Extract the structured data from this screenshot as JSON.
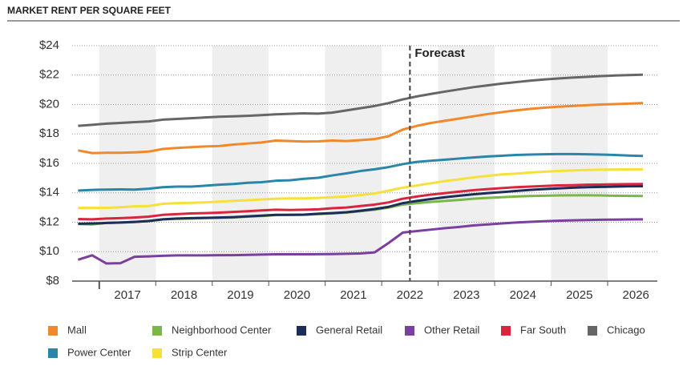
{
  "chart_data": {
    "type": "line",
    "title": "MARKET RENT PER SQUARE FEET",
    "annotation": {
      "text": "Forecast",
      "x": 2022.5
    },
    "xlim": [
      2016.52,
      2026.88
    ],
    "xticks": [
      {
        "value": 2017.5,
        "label": "2017"
      },
      {
        "value": 2018.5,
        "label": "2018"
      },
      {
        "value": 2019.5,
        "label": "2019"
      },
      {
        "value": 2020.5,
        "label": "2020"
      },
      {
        "value": 2021.5,
        "label": "2021"
      },
      {
        "value": 2022.5,
        "label": "2022"
      },
      {
        "value": 2023.5,
        "label": "2023"
      },
      {
        "value": 2024.5,
        "label": "2024"
      },
      {
        "value": 2025.5,
        "label": "2025"
      },
      {
        "value": 2026.5,
        "label": "2026"
      }
    ],
    "ylim": [
      8,
      24
    ],
    "yticks": [
      {
        "value": 8,
        "label": "$8"
      },
      {
        "value": 10,
        "label": "$10"
      },
      {
        "value": 12,
        "label": "$12"
      },
      {
        "value": 14,
        "label": "$14"
      },
      {
        "value": 16,
        "label": "$16"
      },
      {
        "value": 18,
        "label": "$18"
      },
      {
        "value": 20,
        "label": "$20"
      },
      {
        "value": 22,
        "label": "$22"
      },
      {
        "value": 24,
        "label": "$24"
      }
    ],
    "grid": true,
    "x": [
      2016.625,
      2016.875,
      2017.125,
      2017.375,
      2017.625,
      2017.875,
      2018.125,
      2018.375,
      2018.625,
      2018.875,
      2019.125,
      2019.375,
      2019.625,
      2019.875,
      2020.125,
      2020.375,
      2020.625,
      2020.875,
      2021.125,
      2021.375,
      2021.625,
      2021.875,
      2022.125,
      2022.375,
      2022.625,
      2022.875,
      2023.125,
      2023.375,
      2023.625,
      2023.875,
      2024.125,
      2024.375,
      2024.625,
      2024.875,
      2025.125,
      2025.375,
      2025.625,
      2025.875,
      2026.125,
      2026.375,
      2026.625
    ],
    "series": [
      {
        "name": "Mall",
        "color": "#f0892b",
        "values": [
          16.88,
          16.7,
          16.72,
          16.72,
          16.75,
          16.8,
          16.98,
          17.05,
          17.1,
          17.15,
          17.18,
          17.28,
          17.35,
          17.42,
          17.55,
          17.52,
          17.48,
          17.5,
          17.55,
          17.52,
          17.58,
          17.65,
          17.85,
          18.3,
          18.55,
          18.75,
          18.9,
          19.05,
          19.2,
          19.35,
          19.48,
          19.6,
          19.7,
          19.78,
          19.85,
          19.9,
          19.95,
          20.0,
          20.03,
          20.06,
          20.1
        ]
      },
      {
        "name": "Neighborhood Center",
        "color": "#7ab648",
        "values": [
          11.88,
          11.85,
          11.95,
          11.98,
          12.02,
          12.08,
          12.2,
          12.23,
          12.25,
          12.28,
          12.3,
          12.32,
          12.38,
          12.42,
          12.48,
          12.5,
          12.5,
          12.55,
          12.6,
          12.65,
          12.75,
          12.85,
          13.0,
          13.2,
          13.3,
          13.38,
          13.45,
          13.52,
          13.6,
          13.65,
          13.7,
          13.75,
          13.78,
          13.8,
          13.82,
          13.83,
          13.83,
          13.82,
          13.8,
          13.79,
          13.78
        ]
      },
      {
        "name": "General Retail",
        "color": "#1c2d5a",
        "values": [
          11.9,
          11.92,
          11.95,
          11.98,
          12.02,
          12.08,
          12.2,
          12.25,
          12.28,
          12.3,
          12.32,
          12.35,
          12.4,
          12.45,
          12.5,
          12.5,
          12.52,
          12.58,
          12.62,
          12.68,
          12.78,
          12.9,
          13.05,
          13.3,
          13.45,
          13.58,
          13.7,
          13.8,
          13.9,
          13.98,
          14.05,
          14.12,
          14.2,
          14.25,
          14.3,
          14.35,
          14.38,
          14.4,
          14.42,
          14.44,
          14.45
        ]
      },
      {
        "name": "Other Retail",
        "color": "#7b3f9e",
        "values": [
          9.45,
          9.75,
          9.2,
          9.22,
          9.65,
          9.68,
          9.72,
          9.75,
          9.75,
          9.75,
          9.76,
          9.76,
          9.78,
          9.8,
          9.82,
          9.82,
          9.82,
          9.83,
          9.84,
          9.86,
          9.88,
          9.95,
          10.6,
          11.3,
          11.4,
          11.5,
          11.6,
          11.68,
          11.78,
          11.85,
          11.92,
          11.98,
          12.03,
          12.07,
          12.1,
          12.13,
          12.15,
          12.17,
          12.18,
          12.19,
          12.2
        ]
      },
      {
        "name": "Far South",
        "color": "#d7263d",
        "values": [
          12.22,
          12.2,
          12.25,
          12.28,
          12.32,
          12.38,
          12.5,
          12.55,
          12.6,
          12.62,
          12.65,
          12.7,
          12.75,
          12.8,
          12.85,
          12.83,
          12.85,
          12.88,
          12.95,
          13.0,
          13.1,
          13.2,
          13.35,
          13.6,
          13.75,
          13.88,
          13.98,
          14.08,
          14.18,
          14.25,
          14.32,
          14.38,
          14.42,
          14.46,
          14.5,
          14.52,
          14.55,
          14.56,
          14.58,
          14.59,
          14.6
        ]
      },
      {
        "name": "Chicago",
        "color": "#666666",
        "values": [
          18.55,
          18.62,
          18.7,
          18.75,
          18.8,
          18.85,
          18.97,
          19.02,
          19.07,
          19.12,
          19.17,
          19.2,
          19.23,
          19.28,
          19.33,
          19.37,
          19.4,
          19.38,
          19.45,
          19.6,
          19.75,
          19.9,
          20.1,
          20.35,
          20.55,
          20.72,
          20.88,
          21.03,
          21.18,
          21.3,
          21.42,
          21.52,
          21.62,
          21.7,
          21.77,
          21.83,
          21.88,
          21.93,
          21.97,
          22.0,
          22.03
        ]
      },
      {
        "name": "Power Center",
        "color": "#2a86a8",
        "values": [
          14.15,
          14.2,
          14.22,
          14.23,
          14.22,
          14.28,
          14.38,
          14.42,
          14.42,
          14.48,
          14.55,
          14.6,
          14.68,
          14.72,
          14.82,
          14.85,
          14.95,
          15.02,
          15.18,
          15.32,
          15.48,
          15.6,
          15.75,
          15.95,
          16.1,
          16.18,
          16.25,
          16.33,
          16.4,
          16.47,
          16.52,
          16.57,
          16.6,
          16.62,
          16.63,
          16.63,
          16.62,
          16.6,
          16.57,
          16.53,
          16.5
        ]
      },
      {
        "name": "Strip Center",
        "color": "#f5e13a",
        "values": [
          12.98,
          12.97,
          12.98,
          13.02,
          13.08,
          13.1,
          13.25,
          13.3,
          13.32,
          13.35,
          13.4,
          13.45,
          13.5,
          13.55,
          13.6,
          13.62,
          13.62,
          13.65,
          13.7,
          13.75,
          13.85,
          13.95,
          14.15,
          14.35,
          14.5,
          14.65,
          14.8,
          14.92,
          15.05,
          15.15,
          15.25,
          15.3,
          15.38,
          15.43,
          15.48,
          15.52,
          15.55,
          15.57,
          15.58,
          15.6,
          15.6
        ]
      }
    ]
  }
}
